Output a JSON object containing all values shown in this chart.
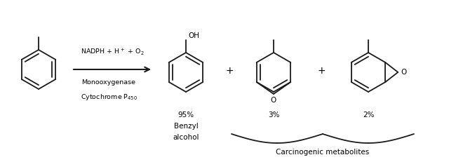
{
  "bg_color": "#ffffff",
  "line_color": "#1a1a1a",
  "text_color": "#000000",
  "arrow_color": "#1a1a1a",
  "fig_width": 6.4,
  "fig_height": 2.31,
  "dpi": 100,
  "reagent_text": "NADPH + H$^+$ + O$_2$",
  "enzyme_text1": "Monooxygenase",
  "enzyme_text2": "Cytochrome P$_{450}$",
  "product1_pct": "95%",
  "product1_name1": "Benzyl",
  "product1_name2": "alcohol",
  "product2_pct": "3%",
  "product3_pct": "2%",
  "carcinogenic_label": "Carcinogenic metabolites",
  "plus_sign": "+",
  "oh_label": "OH"
}
